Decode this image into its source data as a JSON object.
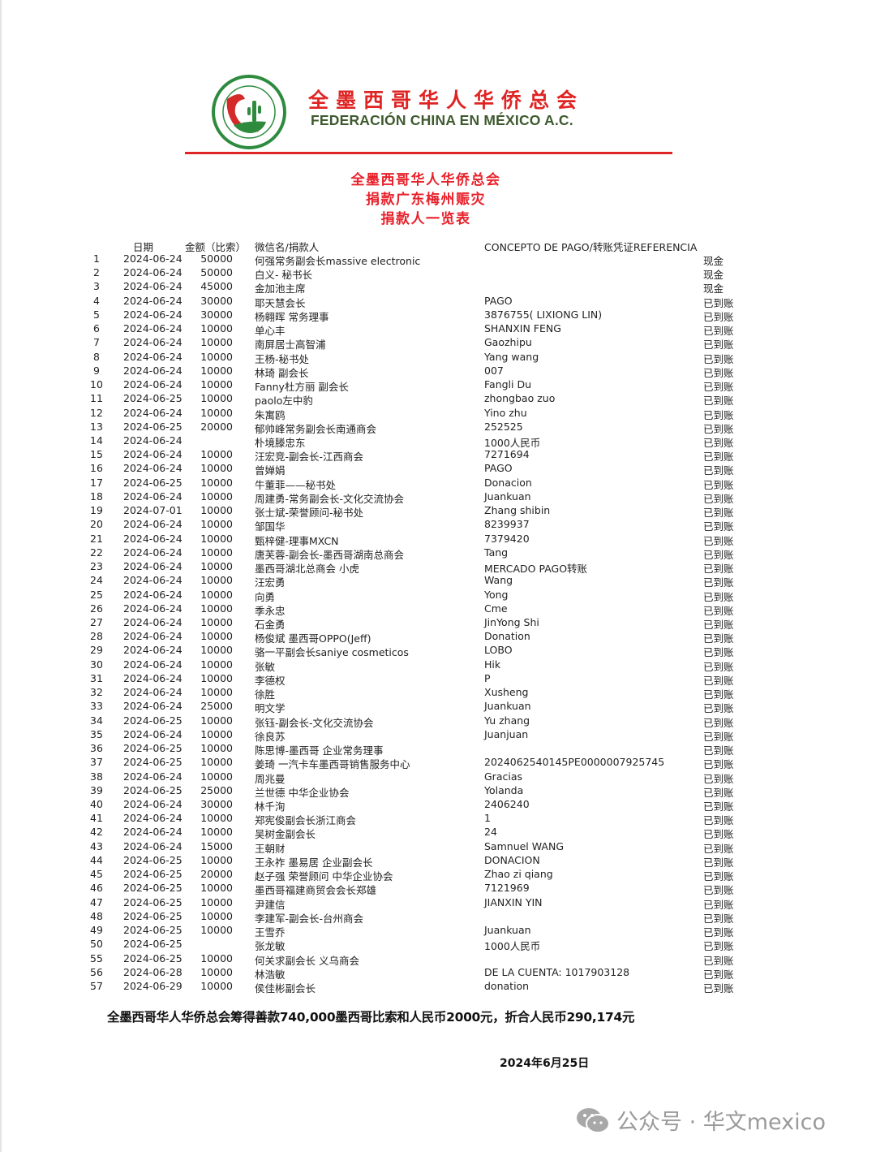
{
  "header": {
    "org_name_cn": "全墨西哥华人华侨总会",
    "org_name_es": "FEDERACIÓN CHINA EN MÉXICO  A.C.",
    "logo_text": "全墨西哥华人华侨总会 FEDERACIÓN CHINA EN MÉXICO A.C.",
    "accent_color": "#e02424",
    "logo_green": "#2e8b3e"
  },
  "titles": [
    "全墨西哥华人华侨总会",
    "捐款广东梅州赈灾",
    "捐款人一览表"
  ],
  "table": {
    "columns": [
      "",
      "日期",
      "金额（比索）",
      "微信名/捐款人",
      "CONCEPTO DE PAGO/转账凭证REFERENCIA",
      ""
    ],
    "rows": [
      [
        "1",
        "2024-06-24",
        "50000",
        "何强常务副会长massive electronic",
        "",
        "现金"
      ],
      [
        "2",
        "2024-06-24",
        "50000",
        "白义- 秘书长",
        "",
        "现金"
      ],
      [
        "3",
        "2024-06-24",
        "45000",
        "金加池主席",
        "",
        "现金"
      ],
      [
        "4",
        "2024-06-24",
        "30000",
        "耶天慧会长",
        "PAGO",
        "已到账"
      ],
      [
        "5",
        "2024-06-24",
        "30000",
        "杨翱晖 常务理事",
        "3876755( LIXIONG LIN)",
        "已到账"
      ],
      [
        "6",
        "2024-06-24",
        "10000",
        "单心丰",
        "SHANXIN FENG",
        "已到账"
      ],
      [
        "7",
        "2024-06-24",
        "10000",
        "南屏居士高智浦",
        "Gaozhipu",
        "已到账"
      ],
      [
        "8",
        "2024-06-24",
        "10000",
        "王杨-秘书处",
        "Yang wang",
        "已到账"
      ],
      [
        "9",
        "2024-06-24",
        "10000",
        "林琦 副会长",
        "007",
        "已到账"
      ],
      [
        "10",
        "2024-06-24",
        "10000",
        "Fanny杜方丽 副会长",
        "Fangli Du",
        "已到账"
      ],
      [
        "11",
        "2024-06-25",
        "10000",
        "paolo左中豹",
        "zhongbao zuo",
        "已到账"
      ],
      [
        "12",
        "2024-06-24",
        "10000",
        "朱寓鸥",
        "Yino zhu",
        "已到账"
      ],
      [
        "13",
        "2024-06-25",
        "20000",
        "郁帅峰常务副会长南通商会",
        "252525",
        "已到账"
      ],
      [
        "14",
        "2024-06-24",
        "",
        "朴境滕忠东",
        "1000人民币",
        "已到账"
      ],
      [
        "15",
        "2024-06-24",
        "10000",
        "汪宏竞-副会长-江西商会",
        "7271694",
        "已到账"
      ],
      [
        "16",
        "2024-06-24",
        "10000",
        "曾婵娟",
        "PAGO",
        "已到账"
      ],
      [
        "17",
        "2024-06-25",
        "10000",
        "牛董菲——秘书处",
        "Donacion",
        "已到账"
      ],
      [
        "18",
        "2024-06-24",
        "10000",
        "周建勇-常务副会长-文化交流协会",
        "Juankuan",
        "已到账"
      ],
      [
        "19",
        "2024-07-01",
        "10000",
        "张士斌-荣誉顾问-秘书处",
        "Zhang shibin",
        "已到账"
      ],
      [
        "20",
        "2024-06-24",
        "10000",
        "邹国华",
        "8239937",
        "已到账"
      ],
      [
        "21",
        "2024-06-24",
        "10000",
        "甄梓健-理事MXCN",
        "7379420",
        "已到账"
      ],
      [
        "22",
        "2024-06-24",
        "10000",
        "唐芙蓉-副会长-墨西哥湖南总商会",
        "Tang",
        "已到账"
      ],
      [
        "23",
        "2024-06-24",
        "10000",
        "墨西哥湖北总商会 小虎",
        "MERCADO PAGO转账",
        "已到账"
      ],
      [
        "24",
        "2024-06-24",
        "10000",
        "汪宏勇",
        "Wang",
        "已到账"
      ],
      [
        "25",
        "2024-06-24",
        "10000",
        "向勇",
        "Yong",
        "已到账"
      ],
      [
        "26",
        "2024-06-24",
        "10000",
        "季永忠",
        "Cme",
        "已到账"
      ],
      [
        "27",
        "2024-06-24",
        "10000",
        "石金勇",
        "JinYong Shi",
        "已到账"
      ],
      [
        "28",
        "2024-06-24",
        "10000",
        "杨俊斌 墨西哥OPPO(Jeff)",
        "Donation",
        "已到账"
      ],
      [
        "29",
        "2024-06-24",
        "10000",
        "骆一平副会长saniye cosmeticos",
        "LOBO",
        "已到账"
      ],
      [
        "30",
        "2024-06-24",
        "10000",
        "张敏",
        "Hik",
        "已到账"
      ],
      [
        "31",
        "2024-06-24",
        "10000",
        "李德权",
        "P",
        "已到账"
      ],
      [
        "32",
        "2024-06-24",
        "10000",
        "徐胜",
        "Xusheng",
        "已到账"
      ],
      [
        "33",
        "2024-06-24",
        "25000",
        "明文学",
        "Juankuan",
        "已到账"
      ],
      [
        "34",
        "2024-06-25",
        "10000",
        "张钰-副会长-文化交流协会",
        "Yu zhang",
        "已到账"
      ],
      [
        "35",
        "2024-06-24",
        "10000",
        "徐良苏",
        "Juanjuan",
        "已到账"
      ],
      [
        "36",
        "2024-06-25",
        "10000",
        "陈思博-墨西哥 企业常务理事",
        "",
        "已到账"
      ],
      [
        "37",
        "2024-06-25",
        "10000",
        "姜琦 一汽卡车墨西哥销售服务中心",
        "2024062540145PE0000007925745",
        "已到账"
      ],
      [
        "38",
        "2024-06-24",
        "10000",
        "周兆曼",
        "Gracias",
        "已到账"
      ],
      [
        "39",
        "2024-06-25",
        "25000",
        "兰世德 中华企业协会",
        "Yolanda",
        "已到账"
      ],
      [
        "40",
        "2024-06-24",
        "30000",
        "林千洵",
        "2406240",
        "已到账"
      ],
      [
        "41",
        "2024-06-24",
        "10000",
        "郑宪俊副会长浙江商会",
        "1",
        "已到账"
      ],
      [
        "42",
        "2024-06-24",
        "10000",
        "吴树金副会长",
        "24",
        "已到账"
      ],
      [
        "43",
        "2024-06-24",
        "15000",
        "王朝财",
        "Samnuel WANG",
        "已到账"
      ],
      [
        "44",
        "2024-06-25",
        "10000",
        "王永祚 墨易居 企业副会长",
        "DONACION",
        "已到账"
      ],
      [
        "45",
        "2024-06-25",
        "20000",
        "赵子强 荣誉顾问 中华企业协会",
        "Zhao zi qiang",
        "已到账"
      ],
      [
        "46",
        "2024-06-25",
        "10000",
        "墨西哥福建商贸会会长郑雄",
        "7121969",
        "已到账"
      ],
      [
        "47",
        "2024-06-25",
        "10000",
        "尹建信",
        "JIANXIN YIN",
        "已到账"
      ],
      [
        "48",
        "2024-06-25",
        "10000",
        "李建军-副会长-台州商会",
        "",
        "已到账"
      ],
      [
        "49",
        "2024-06-25",
        "10000",
        "王雪乔",
        "Juankuan",
        "已到账"
      ],
      [
        "50",
        "2024-06-25",
        "",
        "张龙敏",
        "1000人民币",
        "已到账"
      ],
      [
        "55",
        "2024-06-25",
        "10000",
        "何关求副会长 义乌商会",
        "",
        "已到账"
      ],
      [
        "56",
        "2024-06-28",
        "10000",
        "林浩敏",
        "DE LA CUENTA: 1017903128",
        "已到账"
      ],
      [
        "57",
        "2024-06-29",
        "10000",
        "侯佳彬副会长",
        "donation",
        "已到账"
      ]
    ]
  },
  "summary": "全墨西哥华人华侨总会筹得善款740,000墨西哥比索和人民币2000元，折合人民币290,174元",
  "date": "2024年6月25日",
  "watermark": {
    "icon": "wechat-icon",
    "text": "公众号 · 华文mexico"
  }
}
